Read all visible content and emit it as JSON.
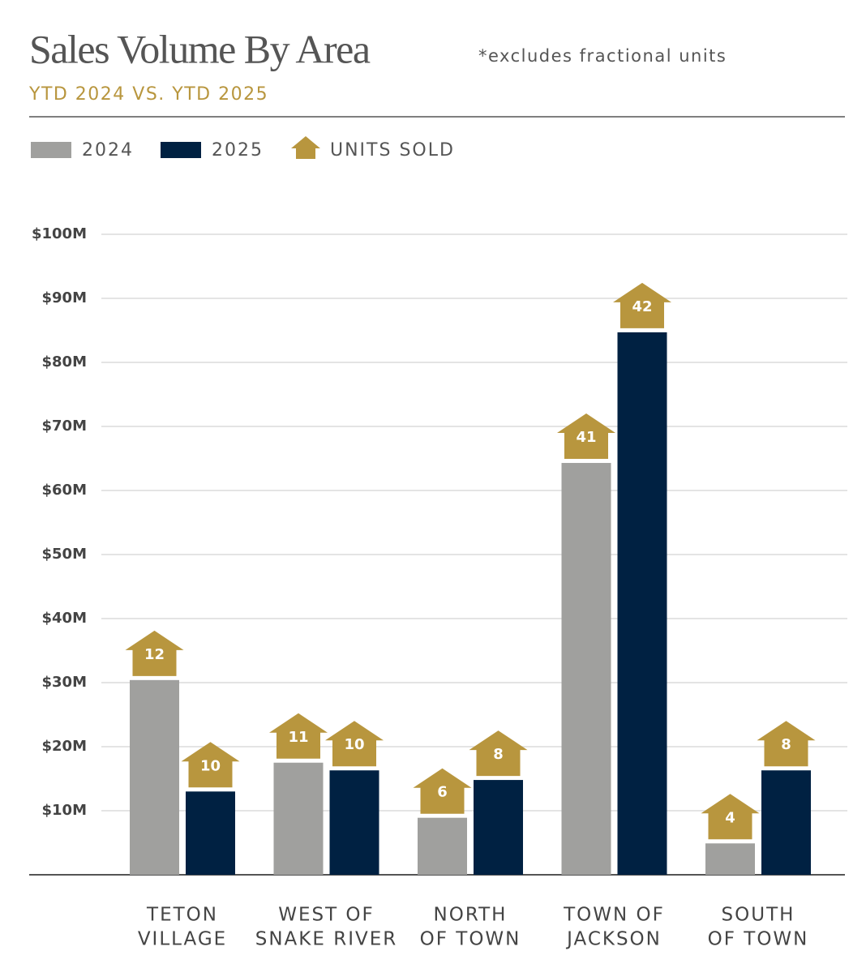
{
  "chart_data": {
    "type": "bar",
    "title": "Sales Volume By Area",
    "subtitle": "YTD 2024 VS. YTD 2025",
    "note": "*excludes fractional units",
    "units_label": "UNITS SOLD",
    "badge_color": "#b8963e",
    "categories": [
      [
        "TETON",
        "VILLAGE"
      ],
      [
        "WEST OF",
        "SNAKE RIVER"
      ],
      [
        "NORTH",
        "OF TOWN"
      ],
      [
        "TOWN OF",
        "JACKSON"
      ],
      [
        "SOUTH",
        "OF TOWN"
      ]
    ],
    "series": [
      {
        "name": "2024",
        "color": "#a0a09e",
        "values": [
          30.4,
          17.5,
          8.9,
          64.3,
          4.9
        ],
        "units": [
          12,
          11,
          6,
          41,
          4
        ]
      },
      {
        "name": "2025",
        "color": "#002142",
        "values": [
          13.0,
          16.3,
          14.8,
          84.7,
          16.3
        ],
        "units": [
          10,
          10,
          8,
          42,
          8
        ]
      }
    ],
    "ylim": [
      0,
      100
    ],
    "yticks": [
      {
        "value": 10,
        "label": "$10M"
      },
      {
        "value": 20,
        "label": "$20M"
      },
      {
        "value": 30,
        "label": "$30M"
      },
      {
        "value": 40,
        "label": "$40M"
      },
      {
        "value": 50,
        "label": "$50M"
      },
      {
        "value": 60,
        "label": "$60M"
      },
      {
        "value": 70,
        "label": "$70M"
      },
      {
        "value": 80,
        "label": "$80M"
      },
      {
        "value": 90,
        "label": "$90M"
      },
      {
        "value": 100,
        "label": "$100M"
      }
    ],
    "grid": true
  }
}
